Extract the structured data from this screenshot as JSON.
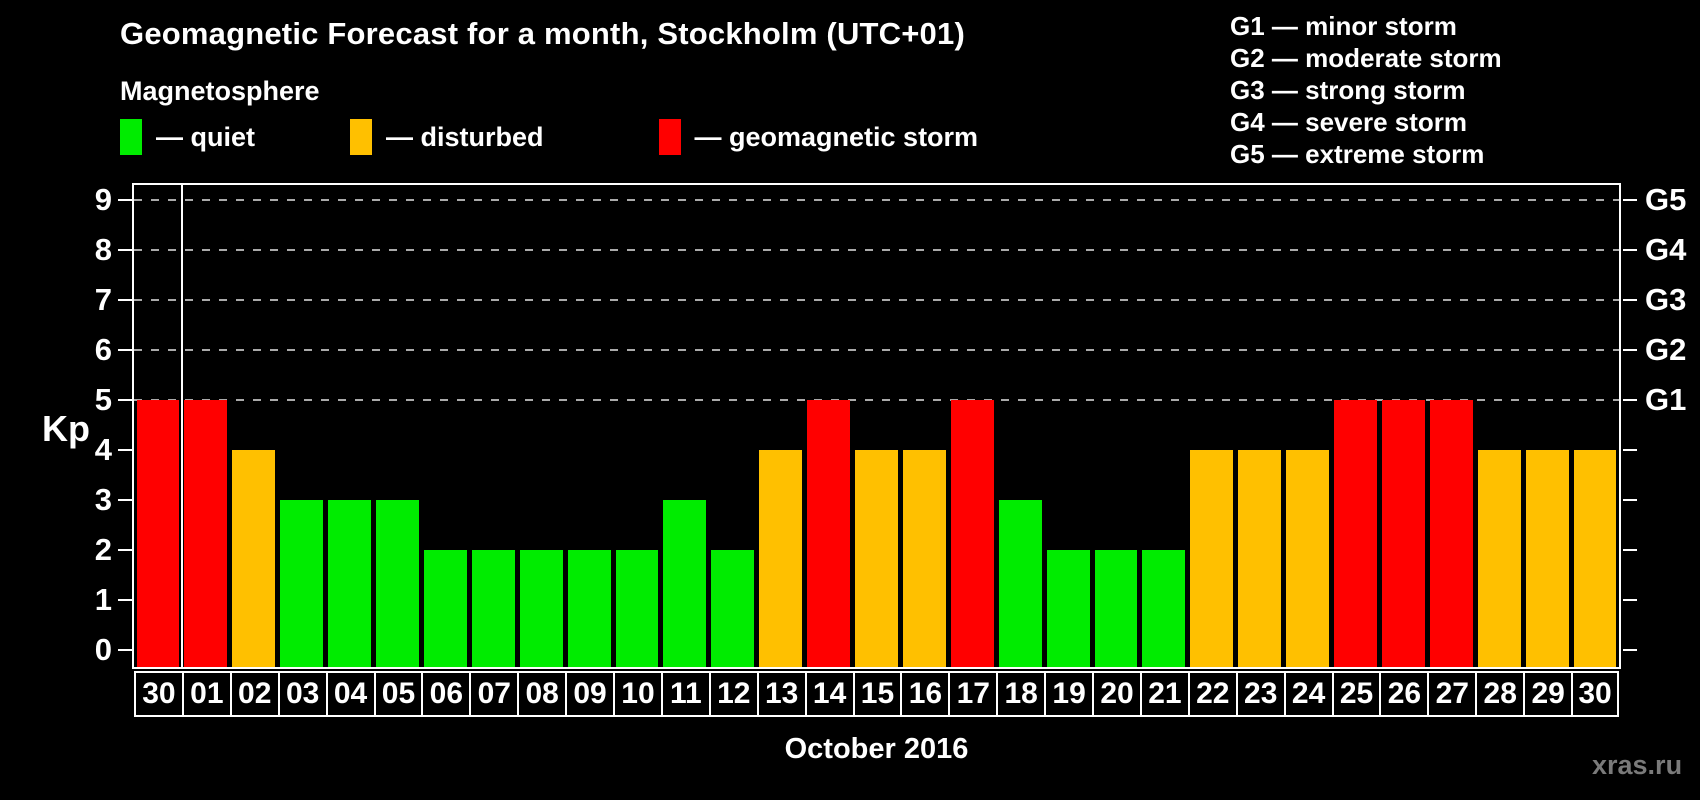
{
  "title": "Geomagnetic Forecast for a month, Stockholm (UTC+01)",
  "subtitle": "Magnetosphere",
  "legend": {
    "items": [
      {
        "key": "quiet",
        "label": "— quiet",
        "color": "#00ec00"
      },
      {
        "key": "disturbed",
        "label": "— disturbed",
        "color": "#ffc000"
      },
      {
        "key": "storm",
        "label": "— geomagnetic storm",
        "color": "#ff0000"
      }
    ]
  },
  "g_legend": [
    "G1 — minor storm",
    "G2 — moderate storm",
    "G3 — strong storm",
    "G4 — severe storm",
    "G5 — extreme storm"
  ],
  "axis": {
    "y_label": "Kp",
    "y_ticks": [
      0,
      1,
      2,
      3,
      4,
      5,
      6,
      7,
      8,
      9
    ],
    "right_labels": [
      {
        "kp": 5,
        "label": "G1"
      },
      {
        "kp": 6,
        "label": "G2"
      },
      {
        "kp": 7,
        "label": "G3"
      },
      {
        "kp": 8,
        "label": "G4"
      },
      {
        "kp": 9,
        "label": "G5"
      }
    ]
  },
  "x_axis_label": "October 2016",
  "watermark": "xras.ru",
  "chart_data": {
    "type": "bar",
    "title": "Geomagnetic Forecast for a month, Stockholm (UTC+01)",
    "xlabel": "October 2016",
    "ylabel": "Kp",
    "ylim": [
      0,
      9.7
    ],
    "grid": "dashed horizontal at Kp 5-9 only",
    "legend_position": "top-left",
    "categories": [
      "30",
      "01",
      "02",
      "03",
      "04",
      "05",
      "06",
      "07",
      "08",
      "09",
      "10",
      "11",
      "12",
      "13",
      "14",
      "15",
      "16",
      "17",
      "18",
      "19",
      "20",
      "21",
      "22",
      "23",
      "24",
      "25",
      "26",
      "27",
      "28",
      "29",
      "30"
    ],
    "values": [
      5,
      5,
      4,
      3,
      3,
      3,
      2,
      2,
      2,
      2,
      2,
      3,
      2,
      4,
      5,
      4,
      4,
      5,
      3,
      2,
      2,
      2,
      4,
      4,
      4,
      5,
      5,
      5,
      4,
      4,
      4
    ],
    "statuses": [
      "storm",
      "storm",
      "disturbed",
      "quiet",
      "quiet",
      "quiet",
      "quiet",
      "quiet",
      "quiet",
      "quiet",
      "quiet",
      "quiet",
      "quiet",
      "disturbed",
      "storm",
      "disturbed",
      "disturbed",
      "storm",
      "quiet",
      "quiet",
      "quiet",
      "quiet",
      "disturbed",
      "disturbed",
      "disturbed",
      "storm",
      "storm",
      "storm",
      "disturbed",
      "disturbed",
      "disturbed"
    ],
    "colors": {
      "quiet": "#00ec00",
      "disturbed": "#ffc000",
      "storm": "#ff0000"
    },
    "gridlines_at": [
      5,
      6,
      7,
      8,
      9
    ],
    "month_separator_after_index": 0
  }
}
